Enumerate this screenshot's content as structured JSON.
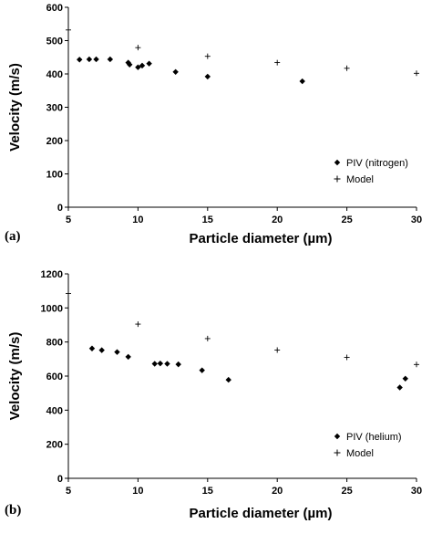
{
  "chart_data": [
    {
      "type": "scatter",
      "panel_label": "(a)",
      "xlabel": "Particle diameter (µm)",
      "ylabel": "Velocity (m/s)",
      "xlim": [
        5,
        30
      ],
      "ylim": [
        0,
        600
      ],
      "xticks": [
        5,
        10,
        15,
        20,
        25,
        30
      ],
      "yticks": [
        0,
        100,
        200,
        300,
        400,
        500,
        600
      ],
      "grid": false,
      "legend_position": "bottom-right",
      "series": [
        {
          "name": "PIV (nitrogen)",
          "marker": "diamond",
          "points": [
            [
              5.8,
              443
            ],
            [
              6.5,
              444
            ],
            [
              7.0,
              444
            ],
            [
              8.0,
              444
            ],
            [
              9.3,
              434
            ],
            [
              9.4,
              428
            ],
            [
              10.0,
              420
            ],
            [
              10.3,
              425
            ],
            [
              10.8,
              431
            ],
            [
              12.7,
              406
            ],
            [
              15.0,
              392
            ],
            [
              21.8,
              378
            ]
          ]
        },
        {
          "name": "Model",
          "marker": "plus",
          "points": [
            [
              5.0,
              532
            ],
            [
              10.0,
              479
            ],
            [
              15.0,
              453
            ],
            [
              20.0,
              434
            ],
            [
              25.0,
              417
            ],
            [
              30.0,
              402
            ]
          ]
        }
      ]
    },
    {
      "type": "scatter",
      "panel_label": "(b)",
      "xlabel": "Particle diameter (µm)",
      "ylabel": "Velocity (m/s)",
      "xlim": [
        5,
        30
      ],
      "ylim": [
        0,
        1200
      ],
      "xticks": [
        5,
        10,
        15,
        20,
        25,
        30
      ],
      "yticks": [
        0,
        200,
        400,
        600,
        800,
        1000,
        1200
      ],
      "grid": false,
      "legend_position": "bottom-right",
      "series": [
        {
          "name": "PIV (helium)",
          "marker": "diamond",
          "points": [
            [
              6.7,
              762
            ],
            [
              7.4,
              752
            ],
            [
              8.5,
              741
            ],
            [
              9.3,
              713
            ],
            [
              11.2,
              672
            ],
            [
              11.6,
              674
            ],
            [
              12.1,
              672
            ],
            [
              12.9,
              669
            ],
            [
              14.6,
              634
            ],
            [
              16.5,
              578
            ],
            [
              28.8,
              533
            ],
            [
              29.2,
              585
            ]
          ]
        },
        {
          "name": "Model",
          "marker": "plus",
          "points": [
            [
              5.0,
              1085
            ],
            [
              10.0,
              905
            ],
            [
              15.0,
              820
            ],
            [
              20.0,
              753
            ],
            [
              25.0,
              710
            ],
            [
              30.0,
              668
            ]
          ]
        }
      ]
    }
  ]
}
